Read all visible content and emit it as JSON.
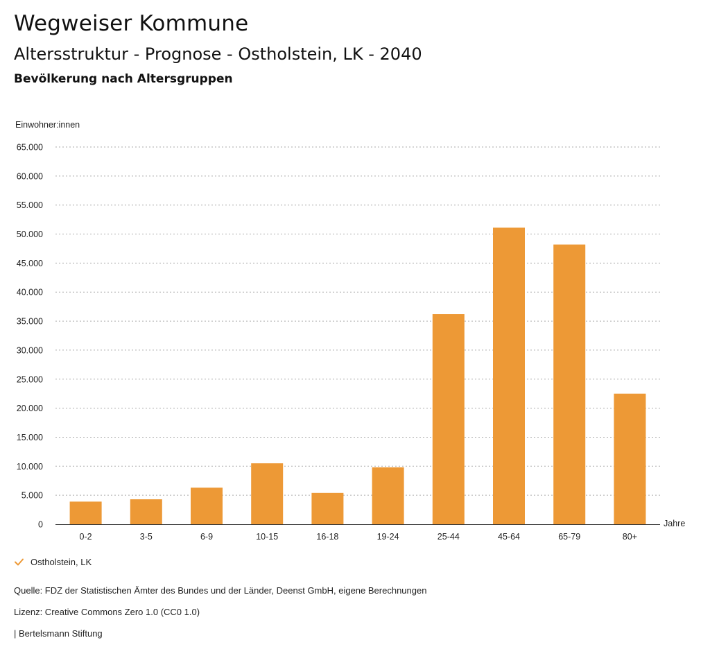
{
  "header": {
    "title": "Wegweiser Kommune",
    "subtitle": "Altersstruktur - Prognose - Ostholstein, LK - 2040",
    "chart_heading": "Bevölkerung nach Altersgruppen"
  },
  "colors": {
    "bar": "#ED9936",
    "grid": "#AAAAAA",
    "axis": "#333333"
  },
  "legend": {
    "label": "Ostholstein, LK",
    "icon": "checkmark-icon"
  },
  "footer": {
    "source": "Quelle: FDZ der Statistischen Ämter des Bundes und der Länder, Deenst GmbH, eigene Berechnungen",
    "license": "Lizenz: Creative Commons Zero 1.0 (CC0 1.0)",
    "publisher": "| Bertelsmann Stiftung"
  },
  "chart_data": {
    "type": "bar",
    "ylabel": "Einwohner:innen",
    "xlabel": "Jahre",
    "ylim": [
      0,
      65000
    ],
    "yticks": [
      0,
      5000,
      10000,
      15000,
      20000,
      25000,
      30000,
      35000,
      40000,
      45000,
      50000,
      55000,
      60000,
      65000
    ],
    "ytick_labels": [
      "0",
      "5.000",
      "10.000",
      "15.000",
      "20.000",
      "25.000",
      "30.000",
      "35.000",
      "40.000",
      "45.000",
      "50.000",
      "55.000",
      "60.000",
      "65.000"
    ],
    "grid": true,
    "legend_position": "bottom-left",
    "categories": [
      "0-2",
      "3-5",
      "6-9",
      "10-15",
      "16-18",
      "19-24",
      "25-44",
      "45-64",
      "65-79",
      "80+"
    ],
    "series": [
      {
        "name": "Ostholstein, LK",
        "values": [
          3900,
          4300,
          6300,
          10500,
          5400,
          9800,
          36200,
          51100,
          48200,
          22500
        ]
      }
    ]
  }
}
